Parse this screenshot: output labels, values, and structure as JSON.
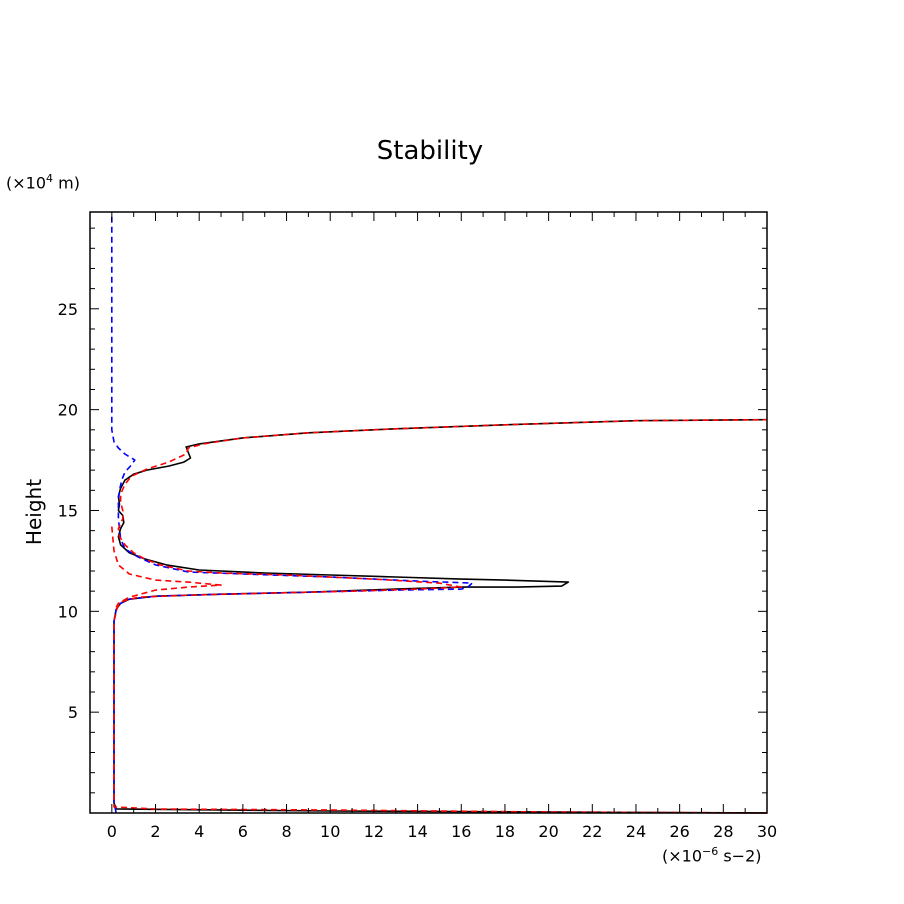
{
  "chart_data": {
    "type": "line",
    "title": "Stability",
    "ylabel": "Height",
    "xlabel": "",
    "x_unit_prefix": "(×10",
    "x_unit_exp": "−6",
    "x_unit_suffix": " s−2)",
    "y_unit_prefix": "(×10",
    "y_unit_exp": "4",
    "y_unit_suffix": " m)",
    "xlim": [
      -1,
      30
    ],
    "ylim": [
      0,
      29.8
    ],
    "x_ticks": [
      0,
      2,
      4,
      6,
      8,
      10,
      12,
      14,
      16,
      18,
      20,
      22,
      24,
      26,
      28,
      30
    ],
    "x_tick_labels": [
      "0",
      "2",
      "4",
      "6",
      "8",
      "10",
      "12",
      "14",
      "16",
      "18",
      "20",
      "22",
      "24",
      "26",
      "28",
      "30"
    ],
    "y_ticks": [
      5,
      10,
      15,
      20,
      25
    ],
    "y_tick_labels": [
      "5",
      "10",
      "15",
      "20",
      "25"
    ],
    "grid": false,
    "series": [
      {
        "color": "#000000",
        "dash": "solid",
        "points": [
          [
            30,
            0
          ],
          [
            10,
            0.1
          ],
          [
            0.2,
            0.2
          ],
          [
            0.1,
            0.5
          ],
          [
            0.1,
            3
          ],
          [
            0.1,
            6
          ],
          [
            0.1,
            9.5
          ],
          [
            0.2,
            10.1
          ],
          [
            0.4,
            10.4
          ],
          [
            0.8,
            10.6
          ],
          [
            2,
            10.75
          ],
          [
            5,
            10.85
          ],
          [
            9,
            10.95
          ],
          [
            13,
            11.1
          ],
          [
            16,
            11.2
          ],
          [
            18.5,
            11.2
          ],
          [
            20.6,
            11.25
          ],
          [
            20.9,
            11.45
          ],
          [
            18,
            11.55
          ],
          [
            16,
            11.6
          ],
          [
            13,
            11.7
          ],
          [
            10,
            11.8
          ],
          [
            7,
            11.9
          ],
          [
            4,
            12.05
          ],
          [
            2.5,
            12.3
          ],
          [
            1.5,
            12.6
          ],
          [
            0.8,
            12.9
          ],
          [
            0.4,
            13.3
          ],
          [
            0.3,
            13.7
          ],
          [
            0.4,
            14.1
          ],
          [
            0.55,
            14.4
          ],
          [
            0.5,
            14.75
          ],
          [
            0.3,
            15
          ],
          [
            0.35,
            15.3
          ],
          [
            0.3,
            15.7
          ],
          [
            0.4,
            16.1
          ],
          [
            0.6,
            16.5
          ],
          [
            1,
            16.8
          ],
          [
            1.6,
            17
          ],
          [
            2.6,
            17.2
          ],
          [
            3.3,
            17.4
          ],
          [
            3.6,
            17.6
          ],
          [
            3.4,
            18.15
          ],
          [
            4,
            18.3
          ],
          [
            6,
            18.6
          ],
          [
            9,
            18.85
          ],
          [
            13,
            19.05
          ],
          [
            18,
            19.25
          ],
          [
            24,
            19.45
          ],
          [
            30,
            19.5
          ]
        ]
      },
      {
        "color": "#0000ff",
        "dash": "dashed",
        "points": [
          [
            0.2,
            0
          ],
          [
            0.1,
            0.5
          ],
          [
            0.1,
            3
          ],
          [
            0.1,
            6
          ],
          [
            0.1,
            9.5
          ],
          [
            0.2,
            10.1
          ],
          [
            0.4,
            10.4
          ],
          [
            0.8,
            10.6
          ],
          [
            2,
            10.75
          ],
          [
            5,
            10.85
          ],
          [
            9,
            10.95
          ],
          [
            13,
            11.05
          ],
          [
            16,
            11.1
          ],
          [
            16.3,
            11.2
          ],
          [
            16.5,
            11.4
          ],
          [
            14,
            11.5
          ],
          [
            10,
            11.7
          ],
          [
            6,
            11.85
          ],
          [
            3.5,
            11.95
          ],
          [
            2,
            12.3
          ],
          [
            1.2,
            12.7
          ],
          [
            0.6,
            13.1
          ],
          [
            0.4,
            13.6
          ],
          [
            0.35,
            14.1
          ],
          [
            0.3,
            14.6
          ],
          [
            0.3,
            15
          ],
          [
            0.3,
            15.5
          ],
          [
            0.35,
            16
          ],
          [
            0.45,
            16.5
          ],
          [
            0.6,
            16.9
          ],
          [
            0.85,
            17.2
          ],
          [
            1.05,
            17.5
          ],
          [
            0.6,
            17.8
          ],
          [
            0.3,
            18.1
          ],
          [
            0.1,
            18.4
          ],
          [
            0,
            19
          ],
          [
            0,
            22
          ],
          [
            0,
            26
          ],
          [
            0,
            29.8
          ]
        ]
      },
      {
        "color": "#ff0000",
        "dash": "dashed",
        "points": [
          [
            30,
            0
          ],
          [
            20,
            0.05
          ],
          [
            10,
            0.15
          ],
          [
            2,
            0.2
          ],
          [
            0.1,
            0.3
          ],
          [
            0.1,
            3
          ],
          [
            0.1,
            6
          ],
          [
            0.1,
            9.5
          ],
          [
            0.25,
            10.2
          ],
          [
            0.5,
            10.5
          ],
          [
            1.2,
            10.7
          ],
          [
            3.5,
            10.8
          ],
          [
            7,
            10.9
          ],
          [
            11,
            11.0
          ],
          [
            14,
            11.1
          ],
          [
            16,
            11.2
          ],
          [
            15,
            11.4
          ],
          [
            12,
            11.6
          ],
          [
            8,
            11.8
          ],
          [
            5,
            11.9
          ],
          [
            3.5,
            12.0
          ],
          [
            2.2,
            12.3
          ],
          [
            1.5,
            12.6
          ],
          [
            1,
            12.9
          ],
          [
            0.6,
            13.3
          ],
          [
            0.35,
            13.7
          ],
          [
            0.3,
            14.1
          ],
          [
            0.5,
            14.6
          ],
          [
            0.5,
            15
          ],
          [
            0.4,
            15.4
          ],
          [
            0.4,
            15.8
          ],
          [
            0.6,
            16.3
          ],
          [
            0.9,
            16.7
          ],
          [
            1.6,
            17.05
          ],
          [
            2.6,
            17.4
          ],
          [
            3.4,
            17.8
          ],
          [
            3.5,
            18.1
          ],
          [
            4.2,
            18.3
          ],
          [
            6,
            18.6
          ],
          [
            9,
            18.85
          ],
          [
            13,
            19.05
          ],
          [
            18,
            19.25
          ],
          [
            24,
            19.45
          ],
          [
            30,
            19.5
          ]
        ]
      },
      {
        "color": "#ff0000",
        "dash": "dashed",
        "points": [
          [
            0,
            14.2
          ],
          [
            0.05,
            13.6
          ],
          [
            0.1,
            13
          ],
          [
            0.3,
            12.3
          ],
          [
            0.8,
            11.85
          ],
          [
            2,
            11.55
          ],
          [
            3.5,
            11.45
          ],
          [
            5,
            11.3
          ],
          [
            3.5,
            11.2
          ],
          [
            2,
            11.05
          ],
          [
            0.8,
            10.7
          ],
          [
            0.3,
            10.4
          ],
          [
            0.2,
            10.2
          ]
        ]
      }
    ]
  }
}
